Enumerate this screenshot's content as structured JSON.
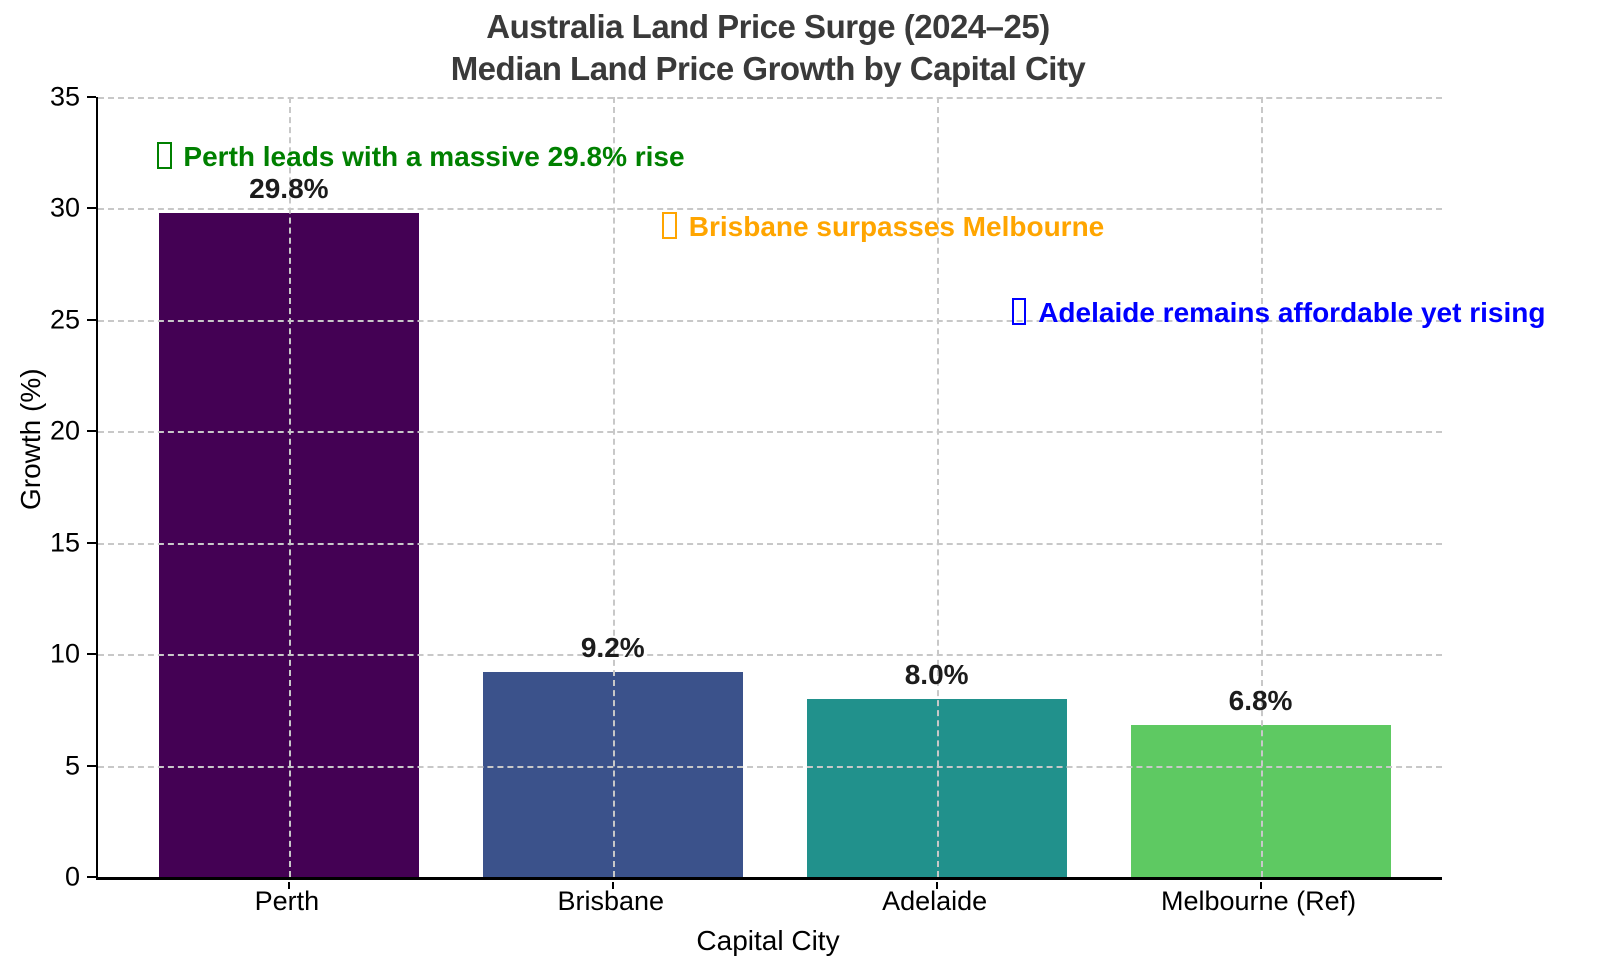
{
  "title": {
    "line1": "Australia Land Price Surge (2024–25)",
    "line2": "Median Land Price Growth by Capital City"
  },
  "axes": {
    "xlabel": "Capital City",
    "ylabel": "Growth (%)",
    "yticks": [
      0,
      5,
      10,
      15,
      20,
      25,
      30,
      35
    ],
    "ylim": [
      0,
      35
    ]
  },
  "chart_data": {
    "type": "bar",
    "title": "Australia Land Price Surge (2024–25) — Median Land Price Growth by Capital City",
    "categories": [
      "Perth",
      "Brisbane",
      "Adelaide",
      "Melbourne (Ref)"
    ],
    "values": [
      29.8,
      9.2,
      8.0,
      6.8
    ],
    "value_labels": [
      "29.8%",
      "9.2%",
      "8.0%",
      "6.8%"
    ],
    "bar_colors": [
      "#440154",
      "#3b528b",
      "#21918c",
      "#5ec962"
    ],
    "xlabel": "Capital City",
    "ylabel": "Growth (%)",
    "ylim": [
      0,
      35
    ],
    "grid": "dashed gray gridlines on both axes, drawn above bars",
    "legend": "none"
  },
  "annotations": [
    {
      "text": "Perth leads with a massive 29.8% rise",
      "color": "#008000",
      "icon": "missing-glyph-box-icon"
    },
    {
      "text": "Brisbane surpasses Melbourne",
      "color": "#FFA500",
      "icon": "missing-glyph-box-icon"
    },
    {
      "text": "Adelaide remains affordable yet rising",
      "color": "#0000FF",
      "icon": "missing-glyph-box-icon"
    }
  ]
}
